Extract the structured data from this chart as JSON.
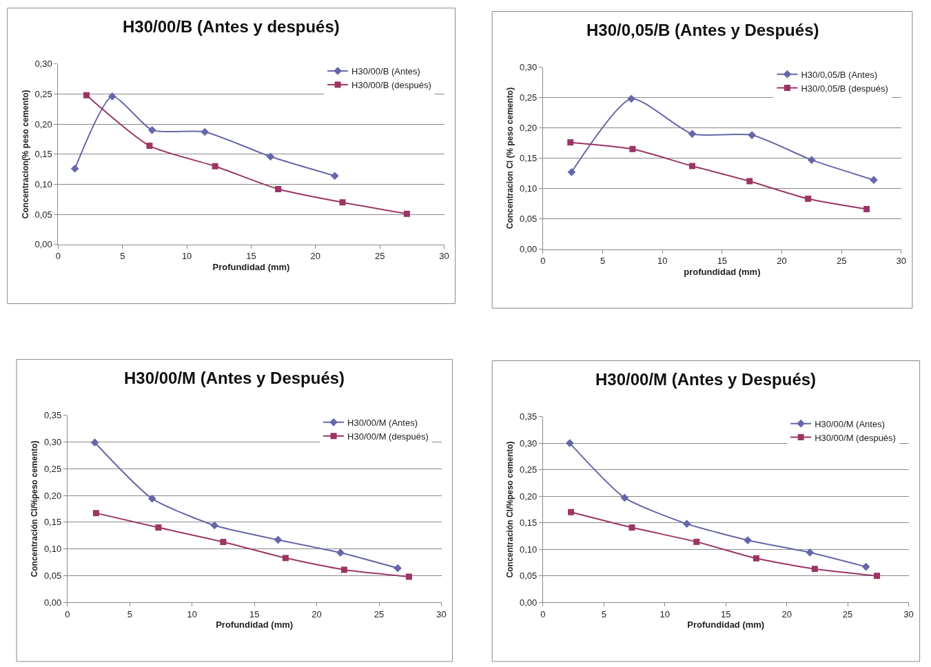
{
  "chart_data": [
    {
      "type": "line",
      "title": "H30/00/B (Antes y después)",
      "xlabel": "Profundidad (mm)",
      "ylabel": "Concentracion(% peso cemento)",
      "xlim": [
        0,
        30
      ],
      "xticks": [
        0,
        5,
        10,
        15,
        20,
        25,
        30
      ],
      "ylim": [
        0,
        0.3
      ],
      "yticks": [
        {
          "value": 0,
          "label": "0,00"
        },
        {
          "value": 0.05,
          "label": "0,05"
        },
        {
          "value": 0.1,
          "label": "0,10"
        },
        {
          "value": 0.15,
          "label": "0,15"
        },
        {
          "value": 0.2,
          "label": "0,20"
        },
        {
          "value": 0.25,
          "label": "0,25"
        },
        {
          "value": 0.3,
          "label": "0,30"
        }
      ],
      "grid": "y",
      "legend": "top right",
      "series": [
        {
          "name": "H30/00/B (Antes)",
          "color": "#6666aa",
          "marker": "diamond",
          "x": [
            1.3,
            4.2,
            7.3,
            11.4,
            16.5,
            21.5
          ],
          "values": [
            0.126,
            0.246,
            0.19,
            0.187,
            0.146,
            0.114
          ]
        },
        {
          "name": "H30/00/B (después)",
          "color": "#9b3564",
          "marker": "square",
          "x": [
            2.2,
            7.1,
            12.2,
            17.1,
            22.1,
            27.1
          ],
          "values": [
            0.248,
            0.164,
            0.13,
            0.092,
            0.07,
            0.051
          ]
        }
      ]
    },
    {
      "type": "line",
      "title": "H30/0,05/B (Antes y Después)",
      "xlabel": "profundidad (mm)",
      "ylabel": "Concentracion Cl (% peso cemento)",
      "xlim": [
        0,
        30
      ],
      "xticks": [
        0,
        5,
        10,
        15,
        20,
        25,
        30
      ],
      "ylim": [
        0,
        0.3
      ],
      "yticks": [
        {
          "value": 0,
          "label": "0,00"
        },
        {
          "value": 0.05,
          "label": "0,05"
        },
        {
          "value": 0.1,
          "label": "0,10"
        },
        {
          "value": 0.15,
          "label": "0,15"
        },
        {
          "value": 0.2,
          "label": "0,20"
        },
        {
          "value": 0.25,
          "label": "0,25"
        },
        {
          "value": 0.3,
          "label": "0,30"
        }
      ],
      "grid": "y",
      "legend": "top right",
      "series": [
        {
          "name": "H30/0,05/B (Antes)",
          "color": "#6666aa",
          "marker": "diamond",
          "x": [
            2.4,
            7.4,
            12.5,
            17.5,
            22.5,
            27.7
          ],
          "values": [
            0.127,
            0.248,
            0.19,
            0.188,
            0.147,
            0.114
          ]
        },
        {
          "name": "H30/0,05/B (después)",
          "color": "#9b3564",
          "marker": "square",
          "x": [
            2.3,
            7.5,
            12.5,
            17.3,
            22.2,
            27.1
          ],
          "values": [
            0.176,
            0.165,
            0.137,
            0.112,
            0.083,
            0.066
          ]
        }
      ]
    },
    {
      "type": "line",
      "title": "H30/00/M (Antes y Después)",
      "xlabel": "Profundidad (mm)",
      "ylabel": "Concentración Cl/%peso cemento)",
      "xlim": [
        0,
        30
      ],
      "xticks": [
        0,
        5,
        10,
        15,
        20,
        25,
        30
      ],
      "ylim": [
        0,
        0.35
      ],
      "yticks": [
        {
          "value": 0,
          "label": "0,00"
        },
        {
          "value": 0.05,
          "label": "0,05"
        },
        {
          "value": 0.1,
          "label": "0,10"
        },
        {
          "value": 0.15,
          "label": "0,15"
        },
        {
          "value": 0.2,
          "label": "0,20"
        },
        {
          "value": 0.25,
          "label": "0,25"
        },
        {
          "value": 0.3,
          "label": "0,30"
        },
        {
          "value": 0.35,
          "label": "0,35"
        }
      ],
      "grid": "y",
      "legend": "top right",
      "series": [
        {
          "name": "H30/00/M (Antes)",
          "color": "#6666aa",
          "marker": "diamond",
          "x": [
            2.2,
            6.8,
            11.8,
            16.9,
            21.9,
            26.5
          ],
          "values": [
            0.299,
            0.194,
            0.144,
            0.117,
            0.093,
            0.064
          ]
        },
        {
          "name": "H30/00/M (después)",
          "color": "#9b3564",
          "marker": "square",
          "x": [
            2.3,
            7.3,
            12.5,
            17.5,
            22.2,
            27.4
          ],
          "values": [
            0.167,
            0.14,
            0.113,
            0.083,
            0.061,
            0.048
          ]
        }
      ]
    },
    {
      "type": "line",
      "title": "H30/00/M (Antes y Después)",
      "xlabel": "Profundidad (mm)",
      "ylabel": "Concentración Cl/%peso cemento)",
      "xlim": [
        0,
        30
      ],
      "xticks": [
        0,
        5,
        10,
        15,
        20,
        25,
        30
      ],
      "ylim": [
        0,
        0.35
      ],
      "yticks": [
        {
          "value": 0,
          "label": "0,00"
        },
        {
          "value": 0.05,
          "label": "0,05"
        },
        {
          "value": 0.1,
          "label": "0,10"
        },
        {
          "value": 0.15,
          "label": "0,15"
        },
        {
          "value": 0.2,
          "label": "0,20"
        },
        {
          "value": 0.25,
          "label": "0,25"
        },
        {
          "value": 0.3,
          "label": "0,30"
        },
        {
          "value": 0.35,
          "label": "0,35"
        }
      ],
      "grid": "y",
      "legend": "top right",
      "series": [
        {
          "name": "H30/00/M (Antes)",
          "color": "#6666aa",
          "marker": "diamond",
          "x": [
            2.2,
            6.7,
            11.8,
            16.8,
            21.9,
            26.5
          ],
          "values": [
            0.3,
            0.197,
            0.148,
            0.117,
            0.094,
            0.067
          ]
        },
        {
          "name": "H30/00/M (después)",
          "color": "#9b3564",
          "marker": "square",
          "x": [
            2.3,
            7.3,
            12.6,
            17.5,
            22.3,
            27.4
          ],
          "values": [
            0.17,
            0.141,
            0.114,
            0.083,
            0.063,
            0.05
          ]
        }
      ]
    }
  ]
}
